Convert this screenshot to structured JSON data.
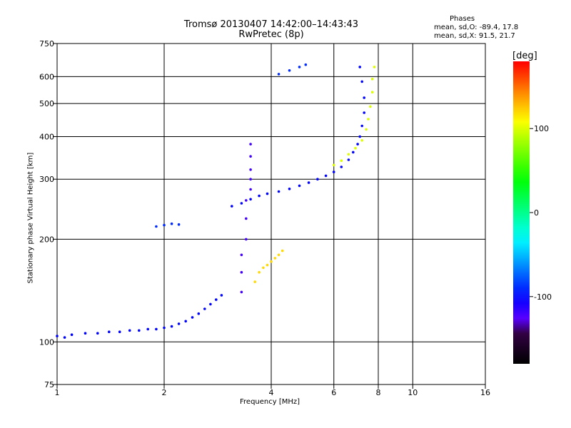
{
  "header": {
    "title_line1": "Tromsø 20130407 14:42:00–14:43:43",
    "title_line2": "RwPretec (8p)"
  },
  "phases_box": {
    "heading": "Phases",
    "line_o": "mean, sd,O: -89.4, 17.8",
    "line_x": "mean, sd,X:  91.5, 21.7"
  },
  "colorbar": {
    "unit_label": "[deg]",
    "ticks": [
      100,
      0,
      -100
    ],
    "range": [
      -180,
      180
    ],
    "scale": "rainbow"
  },
  "chart_data": {
    "type": "scatter",
    "title": "Tromsø 20130407 14:42:00–14:43:43",
    "subtitle": "RwPretec (8p)",
    "xlabel": "Frequency [MHz]",
    "ylabel": "Stationary phase Virtual Height [km]",
    "xscale": "log",
    "yscale": "log",
    "xlim": [
      1,
      16
    ],
    "ylim": [
      75,
      750
    ],
    "x_ticks": [
      1,
      2,
      4,
      6,
      8,
      10,
      16
    ],
    "y_ticks": [
      75,
      100,
      200,
      300,
      400,
      500,
      600,
      750
    ],
    "grid": true,
    "color_by": "phase [deg]",
    "series": [
      {
        "points": [
          [
            1.0,
            104
          ],
          [
            1.05,
            103
          ],
          [
            1.1,
            105
          ],
          [
            1.2,
            106
          ],
          [
            1.3,
            106
          ],
          [
            1.4,
            107
          ],
          [
            1.5,
            107
          ],
          [
            1.6,
            108
          ],
          [
            1.7,
            108
          ],
          [
            1.8,
            109
          ],
          [
            1.9,
            109
          ],
          [
            2.0,
            110
          ],
          [
            2.1,
            111
          ],
          [
            2.2,
            113
          ],
          [
            2.3,
            115
          ],
          [
            2.4,
            118
          ],
          [
            2.5,
            121
          ],
          [
            2.6,
            125
          ],
          [
            2.7,
            129
          ],
          [
            2.8,
            133
          ],
          [
            2.9,
            137
          ]
        ],
        "phase": -100
      },
      {
        "points": [
          [
            3.1,
            250
          ],
          [
            3.3,
            255
          ],
          [
            3.5,
            262
          ],
          [
            3.7,
            268
          ],
          [
            3.9,
            272
          ],
          [
            4.2,
            276
          ],
          [
            4.5,
            281
          ],
          [
            4.8,
            287
          ],
          [
            5.1,
            293
          ],
          [
            5.4,
            300
          ],
          [
            5.7,
            307
          ],
          [
            6.0,
            315
          ],
          [
            6.3,
            326
          ],
          [
            6.6,
            342
          ],
          [
            6.8,
            360
          ],
          [
            7.0,
            380
          ],
          [
            7.1,
            400
          ],
          [
            7.2,
            430
          ],
          [
            7.3,
            470
          ],
          [
            7.3,
            520
          ],
          [
            7.2,
            580
          ],
          [
            7.1,
            640
          ]
        ],
        "phase": -100
      },
      {
        "points": [
          [
            3.3,
            140
          ],
          [
            3.3,
            160
          ],
          [
            3.3,
            180
          ],
          [
            3.4,
            200
          ],
          [
            3.4,
            230
          ],
          [
            3.4,
            260
          ],
          [
            3.5,
            280
          ],
          [
            3.5,
            300
          ],
          [
            3.5,
            320
          ],
          [
            3.5,
            350
          ],
          [
            3.5,
            380
          ]
        ],
        "phase": -120
      },
      {
        "points": [
          [
            3.6,
            150
          ],
          [
            3.7,
            160
          ],
          [
            3.8,
            165
          ],
          [
            3.9,
            168
          ],
          [
            4.0,
            172
          ],
          [
            4.1,
            176
          ],
          [
            4.2,
            180
          ],
          [
            4.3,
            185
          ]
        ],
        "phase": 120
      },
      {
        "points": [
          [
            6.0,
            330
          ],
          [
            6.3,
            340
          ],
          [
            6.6,
            355
          ],
          [
            6.9,
            370
          ],
          [
            7.2,
            390
          ],
          [
            7.4,
            420
          ],
          [
            7.5,
            450
          ],
          [
            7.6,
            490
          ],
          [
            7.7,
            540
          ],
          [
            7.7,
            590
          ],
          [
            7.8,
            640
          ]
        ],
        "phase": 100
      },
      {
        "points": [
          [
            1.9,
            218
          ],
          [
            2.0,
            220
          ],
          [
            2.1,
            222
          ],
          [
            2.2,
            221
          ]
        ],
        "phase": -90
      },
      {
        "points": [
          [
            4.2,
            610
          ],
          [
            4.5,
            625
          ],
          [
            4.8,
            640
          ],
          [
            5.0,
            650
          ]
        ],
        "phase": -90
      }
    ]
  }
}
